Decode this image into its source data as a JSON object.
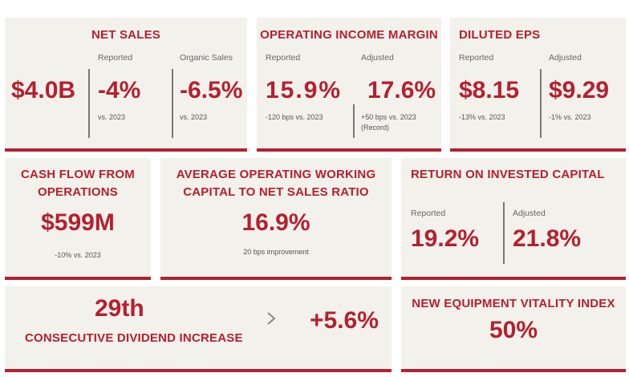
{
  "net_sales": {
    "title": "NET SALES",
    "total": "$4.0B",
    "reported_label": "Reported",
    "reported_value": "-4%",
    "reported_note": "vs. 2023",
    "organic_label": "Organic Sales",
    "organic_value": "-6.5%",
    "organic_note": "vs. 2023"
  },
  "operating_income_margin": {
    "title": "OPERATING INCOME MARGIN",
    "reported_label": "Reported",
    "reported_value": "15.9%",
    "reported_note": "-120 bps vs. 2023",
    "adjusted_label": "Adjusted",
    "adjusted_value": "17.6%",
    "adjusted_note_line1": "+50 bps vs. 2023",
    "adjusted_note_line2": "(Record)"
  },
  "diluted_eps": {
    "title": "DILUTED EPS",
    "reported_label": "Reported",
    "reported_value": "$8.15",
    "reported_note": "-13% vs. 2023",
    "adjusted_label": "Adjusted",
    "adjusted_value": "$9.29",
    "adjusted_note": "-1% vs. 2023"
  },
  "cash_flow": {
    "title_line1": "CASH FLOW FROM",
    "title_line2": "OPERATIONS",
    "value": "$599M",
    "note": "-10% vs. 2023"
  },
  "working_capital": {
    "title_line1": "AVERAGE OPERATING WORKING",
    "title_line2": "CAPITAL TO NET SALES RATIO",
    "value": "16.9%",
    "note": "20 bps improvement"
  },
  "roic": {
    "title": "RETURN ON INVESTED CAPITAL",
    "reported_label": "Reported",
    "reported_value": "19.2%",
    "adjusted_label": "Adjusted",
    "adjusted_value": "21.8%"
  },
  "dividend": {
    "count": "29th",
    "label": "CONSECUTIVE DIVIDEND INCREASE",
    "increase": "+5.6%",
    "chevron_icon": "chevron-right-icon"
  },
  "vitality": {
    "title": "NEW EQUIPMENT VITALITY INDEX",
    "value": "50%"
  },
  "colors": {
    "accent": "#b5202e",
    "tile_bg": "#f3f1ec",
    "label_gray": "#666666"
  }
}
